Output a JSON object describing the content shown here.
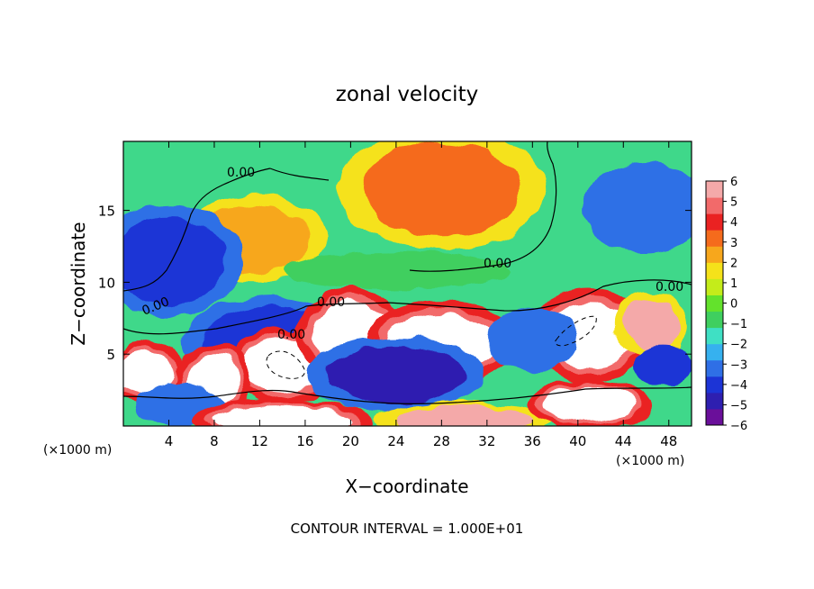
{
  "chart_data": {
    "type": "heatmap",
    "title": "zonal velocity",
    "xlabel": "X−coordinate",
    "ylabel": "Z−coordinate",
    "x_unit_left": "(×1000 m)",
    "x_unit_right": "(×1000 m)",
    "footer": "CONTOUR INTERVAL = 1.000E+01",
    "xlim": [
      0,
      50
    ],
    "ylim": [
      0,
      19.8
    ],
    "x_ticks": [
      4,
      8,
      12,
      16,
      20,
      24,
      28,
      32,
      36,
      40,
      44,
      48
    ],
    "y_ticks": [
      5,
      10,
      15
    ],
    "colorbar": {
      "min": -6,
      "max": 6,
      "ticks": [
        6,
        5,
        4,
        3,
        2,
        1,
        0,
        -1,
        -2,
        -3,
        -4,
        -5,
        -6
      ],
      "colors": [
        "#6a0f9a",
        "#2e1fb0",
        "#1c34d6",
        "#2f6fe6",
        "#36b1ef",
        "#3fe0c4",
        "#3fcf5f",
        "#63e22c",
        "#c4ec1a",
        "#f5e21a",
        "#f7a71c",
        "#f56b1c",
        "#ea2222",
        "#f26a6a",
        "#f4a9a9"
      ]
    },
    "contour_labels": [
      "0.00",
      "0.00",
      "0.00",
      "0.00",
      "0.00",
      "0.00"
    ],
    "field_blobs": [
      {
        "x": 28,
        "z": 16.5,
        "rx": 7,
        "rz": 3.3,
        "v": 3.4
      },
      {
        "x": 11.5,
        "z": 13,
        "rx": 5,
        "rz": 2.3,
        "v": 2.7
      },
      {
        "x": 4,
        "z": 11.5,
        "rx": 5,
        "rz": 3.0,
        "v": -4.3
      },
      {
        "x": 46,
        "z": 15.2,
        "rx": 5.5,
        "rz": 3.2,
        "v": -3.2
      },
      {
        "x": 24,
        "z": 10.8,
        "rx": 10,
        "rz": 1.3,
        "v": -1.0
      },
      {
        "x": 13,
        "z": 5.8,
        "rx": 6,
        "rz": 2.5,
        "v": -4.3
      },
      {
        "x": 14,
        "z": 4.2,
        "rx": 3.5,
        "rz": 1.8,
        "v": 10
      },
      {
        "x": 20,
        "z": 6.4,
        "rx": 3.5,
        "rz": 2.2,
        "v": 7
      },
      {
        "x": 28,
        "z": 5.8,
        "rx": 5,
        "rz": 2.0,
        "v": 8
      },
      {
        "x": 24,
        "z": 3.6,
        "rx": 6,
        "rz": 2.0,
        "v": -4.6
      },
      {
        "x": 41,
        "z": 6.3,
        "rx": 4,
        "rz": 2.2,
        "v": 9
      },
      {
        "x": 36,
        "z": 6.0,
        "rx": 4,
        "rz": 2.2,
        "v": -3.3
      },
      {
        "x": 46.5,
        "z": 7.0,
        "rx": 2.5,
        "rz": 1.8,
        "v": 6
      },
      {
        "x": 47.5,
        "z": 4.2,
        "rx": 2.5,
        "rz": 1.4,
        "v": -4.0
      },
      {
        "x": 2,
        "z": 3.8,
        "rx": 2.5,
        "rz": 1.5,
        "v": 7
      },
      {
        "x": 8,
        "z": 3.2,
        "rx": 2.5,
        "rz": 1.8,
        "v": 7
      },
      {
        "x": 5,
        "z": 1.5,
        "rx": 4,
        "rz": 1.4,
        "v": -3.5
      },
      {
        "x": 14,
        "z": 0.4,
        "rx": 6,
        "rz": 1.0,
        "v": 8
      },
      {
        "x": 30,
        "z": 0.4,
        "rx": 6,
        "rz": 1.0,
        "v": 6
      },
      {
        "x": 41,
        "z": 1.5,
        "rx": 4,
        "rz": 1.2,
        "v": 7
      }
    ]
  }
}
